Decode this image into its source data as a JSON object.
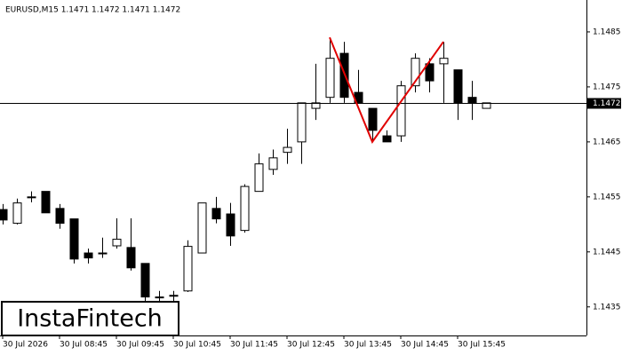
{
  "chart_data": {
    "type": "candlestick",
    "title": "EURUSD,M15  1.1471 1.1472 1.1471 1.1472",
    "watermark": "InstaFintech",
    "categories": [
      "30 Jul 2026",
      null,
      null,
      null,
      "30 Jul 08:45",
      null,
      null,
      null,
      "30 Jul 09:45",
      null,
      null,
      null,
      "30 Jul 10:45",
      null,
      null,
      null,
      "30 Jul 11:45",
      null,
      null,
      null,
      "30 Jul 12:45",
      null,
      null,
      null,
      "30 Jul 13:45",
      null,
      null,
      null,
      "30 Jul 14:45",
      null,
      null,
      null,
      "30 Jul 15:45",
      null,
      null
    ],
    "open": [
      1.14527,
      1.14502,
      1.1455,
      1.1456,
      1.14529,
      1.1451,
      1.14448,
      1.14448,
      1.14461,
      1.14458,
      1.14429,
      1.14368,
      1.14371,
      1.14379,
      1.14448,
      1.14529,
      1.14519,
      1.14489,
      1.1456,
      1.146,
      1.14631,
      1.1465,
      1.14711,
      1.14731,
      1.14811,
      1.1474,
      1.14711,
      1.14661,
      1.14661,
      1.14752,
      1.14792,
      1.14792,
      1.14781,
      1.14731,
      1.14711
    ],
    "high": [
      1.14537,
      1.14547,
      1.1456,
      1.1456,
      1.14537,
      1.1451,
      1.14456,
      1.14476,
      1.14511,
      1.14511,
      1.14429,
      1.14379,
      1.14379,
      1.14471,
      1.14539,
      1.1455,
      1.14539,
      1.14573,
      1.14629,
      1.14636,
      1.14674,
      1.14721,
      1.14792,
      1.14837,
      1.14832,
      1.14781,
      1.14711,
      1.14671,
      1.14761,
      1.14811,
      1.14802,
      1.14832,
      1.14781,
      1.14761,
      1.14721
    ],
    "low": [
      1.145,
      1.145,
      1.1454,
      1.14521,
      1.14492,
      1.14429,
      1.14429,
      1.14439,
      1.14456,
      1.14416,
      1.1436,
      1.14352,
      1.14352,
      1.14377,
      1.14448,
      1.14502,
      1.14461,
      1.14485,
      1.1456,
      1.1459,
      1.1461,
      1.1461,
      1.1469,
      1.14721,
      1.14721,
      1.14721,
      1.1465,
      1.1465,
      1.1465,
      1.1474,
      1.1474,
      1.14721,
      1.1469,
      1.1469,
      1.14711
    ],
    "close": [
      1.14508,
      1.14539,
      1.1455,
      1.14521,
      1.14502,
      1.14437,
      1.14439,
      1.14448,
      1.14473,
      1.14421,
      1.14368,
      1.14368,
      1.14371,
      1.1446,
      1.14539,
      1.1451,
      1.14479,
      1.14569,
      1.1461,
      1.14621,
      1.1464,
      1.14721,
      1.14721,
      1.14802,
      1.14731,
      1.14721,
      1.14671,
      1.1465,
      1.14752,
      1.14802,
      1.14761,
      1.14802,
      1.14721,
      1.14721,
      1.14721
    ],
    "up_color": "#ffffff",
    "down_color": "#000000",
    "ylim": [
      1.14298,
      1.14908
    ],
    "yticks": [
      1.1435,
      1.1445,
      1.1455,
      1.1465,
      1.1475,
      1.1485
    ],
    "last_price": 1.1472,
    "pattern": {
      "color": "#e00000",
      "x": [
        23,
        26,
        31
      ],
      "y": [
        1.1484,
        1.1465,
        1.14832
      ]
    }
  }
}
